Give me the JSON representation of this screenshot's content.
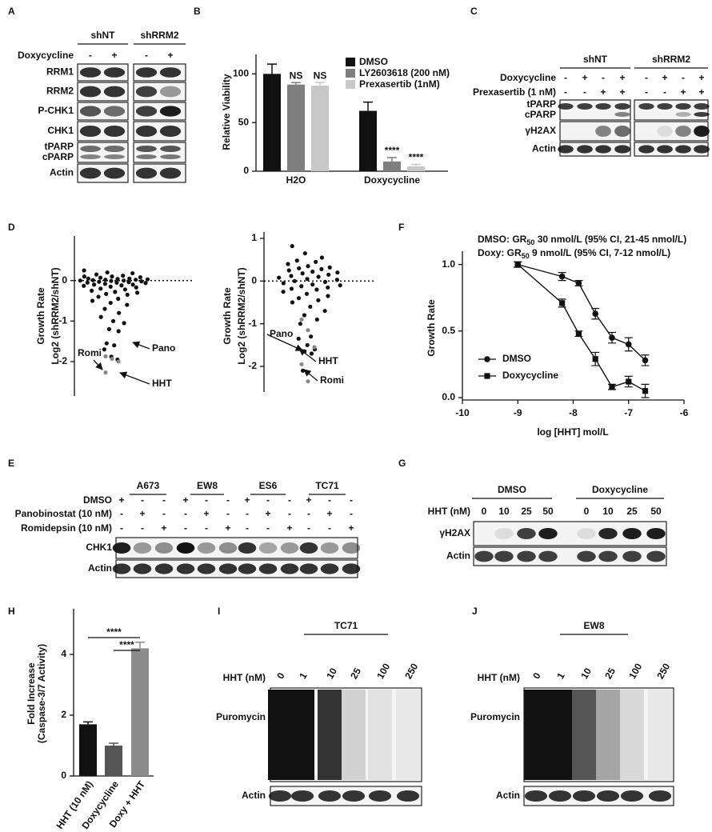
{
  "A": {
    "label": "A",
    "groups": [
      "shNT",
      "shRRM2"
    ],
    "treatments": [
      {
        "name": "Doxycycline",
        "lanes": [
          "-",
          "+",
          "-",
          "+"
        ]
      }
    ],
    "rows": [
      [
        "RRM1"
      ],
      [
        "RRM2"
      ],
      [
        "P-CHK1"
      ],
      [
        "CHK1"
      ],
      [
        "tPARP",
        "cPARP"
      ],
      [
        "Actin"
      ]
    ]
  },
  "B": {
    "label": "B",
    "chart_data": {
      "type": "bar",
      "y_label": "Relative Viability",
      "categories": [
        "H2O",
        "Doxycycline"
      ],
      "series": [
        {
          "name": "DMSO",
          "color": "#111111",
          "values": [
            100,
            62
          ],
          "errors": [
            10,
            9
          ]
        },
        {
          "name": "LY2603618 (200 nM)",
          "color": "#7f7f7f",
          "values": [
            89,
            10
          ],
          "errors": [
            2,
            4
          ],
          "significance": [
            "NS",
            "****"
          ]
        },
        {
          "name": "Prexasertib (1nM)",
          "color": "#c8c8c8",
          "values": [
            88,
            5
          ],
          "errors": [
            3,
            2
          ],
          "significance": [
            "NS",
            "****"
          ]
        }
      ],
      "ylim": [
        0,
        120
      ],
      "yticks": [
        0,
        50,
        100
      ]
    }
  },
  "C": {
    "label": "C",
    "groups": [
      "shNT",
      "shRRM2"
    ],
    "treatments": [
      {
        "name": "Doxycycline",
        "lanes": [
          "-",
          "+",
          "-",
          "+",
          "-",
          "+",
          "-",
          "+"
        ]
      },
      {
        "name": "Prexasertib (1 nM)",
        "lanes": [
          "-",
          "-",
          "+",
          "+",
          "-",
          "-",
          "+",
          "+"
        ]
      }
    ],
    "rows": [
      [
        "tPARP",
        "cPARP"
      ],
      [
        "γH2AX"
      ],
      [
        "Actin"
      ]
    ]
  },
  "D": {
    "label": "D",
    "chart_data": [
      {
        "type": "scatter",
        "y_label": [
          "Growth Rate",
          "Log2 (shRRM2/shNT)"
        ],
        "ylim": [
          -2.85,
          1.1
        ],
        "yticks": [
          0,
          -1,
          -2
        ],
        "points": [
          0.25,
          0.2,
          0.18,
          0.15,
          0.12,
          0.1,
          0.1,
          0.08,
          0.07,
          0.05,
          0.05,
          0.04,
          0.03,
          0.02,
          0.02,
          0.01,
          0,
          0,
          -0.01,
          -0.02,
          -0.03,
          -0.04,
          -0.05,
          -0.05,
          -0.06,
          -0.08,
          -0.1,
          -0.1,
          -0.12,
          -0.13,
          -0.15,
          -0.17,
          -0.2,
          -0.22,
          -0.25,
          -0.28,
          -0.3,
          -0.33,
          -0.35,
          -0.4,
          -0.45,
          -0.5,
          -0.55,
          -0.6,
          -0.7,
          -0.8,
          -0.9,
          -1.0,
          -1.05,
          -1.2,
          -1.25,
          -1.55,
          -1.6,
          -1.7,
          -1.88,
          -1.95
        ],
        "gray_points": [
          -1.87,
          -1.93,
          -2.0,
          -2.27
        ],
        "annotations": [
          "Pano",
          "Romi",
          "HHT"
        ]
      },
      {
        "type": "scatter",
        "y_label": [
          "Growth Rate",
          "Log2 (shRRM2/shNT)"
        ],
        "ylim": [
          -2.6,
          1.15
        ],
        "yticks": [
          1,
          0,
          -1,
          -2
        ],
        "points": [
          0.82,
          0.65,
          0.55,
          0.48,
          0.45,
          0.4,
          0.35,
          0.32,
          0.3,
          0.28,
          0.25,
          0.22,
          0.2,
          0.18,
          0.15,
          0.12,
          0.1,
          0.08,
          0.05,
          0.03,
          0,
          -0.02,
          -0.05,
          -0.08,
          -0.1,
          -0.12,
          -0.15,
          -0.18,
          -0.2,
          -0.25,
          -0.3,
          -0.35,
          -0.4,
          -0.45,
          -0.5,
          -0.6,
          -0.7,
          -0.8,
          -0.9,
          -1.0,
          -1.3,
          -1.35,
          -1.5,
          -1.6,
          -1.65,
          -1.7,
          -2.1
        ],
        "gray_points": [
          -0.9,
          -1.15,
          -1.55,
          -1.95,
          -2.35
        ],
        "annotations": [
          "Pano",
          "HHT",
          "Romi"
        ]
      }
    ]
  },
  "E": {
    "label": "E",
    "groups": [
      "A673",
      "EW8",
      "ES6",
      "TC71"
    ],
    "treatments": [
      {
        "name": "DMSO",
        "lanes": [
          "+",
          "-",
          "-",
          "+",
          "-",
          "-",
          "+",
          "-",
          "-",
          "+",
          "-",
          "-"
        ]
      },
      {
        "name": "Panobinostat (10 nM)",
        "lanes": [
          "-",
          "+",
          "-",
          "-",
          "+",
          "-",
          "-",
          "+",
          "-",
          "-",
          "+",
          "-"
        ]
      },
      {
        "name": "Romidepsin (10 nM)",
        "lanes": [
          "-",
          "-",
          "+",
          "-",
          "-",
          "+",
          "-",
          "-",
          "+",
          "-",
          "-",
          "+"
        ]
      }
    ],
    "rows": [
      [
        "CHK1"
      ],
      [
        "Actin"
      ]
    ]
  },
  "F": {
    "label": "F",
    "chart_data": {
      "type": "line",
      "annotations": [
        {
          "prefix": "DMSO: GR",
          "sub": "50",
          "rest": " 30 nmol/L (95% CI, 21-45 nmol/L)"
        },
        {
          "prefix": "Doxy: GR",
          "sub": "50",
          "rest": " 9 nmol/L (95% CI, 7-12 nmol/L)"
        }
      ],
      "x_label": "log [HHT] mol/L",
      "y_label": "Growth Rate",
      "x": [
        -9,
        -8.2,
        -7.9,
        -7.6,
        -7.3,
        -7,
        -6.7
      ],
      "series": [
        {
          "name": "DMSO",
          "color": "#111111",
          "marker": "circle",
          "values": [
            1.0,
            0.91,
            0.86,
            0.63,
            0.45,
            0.4,
            0.28
          ],
          "errors": [
            0.02,
            0.03,
            0.02,
            0.04,
            0.04,
            0.05,
            0.04
          ]
        },
        {
          "name": "Doxycycline",
          "color": "#111111",
          "marker": "square",
          "values": [
            1.0,
            0.71,
            0.48,
            0.29,
            0.08,
            0.12,
            0.05
          ],
          "errors": [
            0.02,
            0.03,
            0.02,
            0.05,
            0.02,
            0.04,
            0.05
          ]
        }
      ],
      "xlim": [
        -10,
        -6
      ],
      "xticks": [
        -10,
        -9,
        -8,
        -7,
        -6
      ],
      "ylim": [
        0,
        1.1
      ],
      "yticks": [
        {
          "value": 0,
          "label": "0.0"
        },
        {
          "value": 0.5,
          "label": "0.5"
        },
        {
          "value": 1,
          "label": "1.0"
        }
      ]
    }
  },
  "G": {
    "label": "G",
    "groups": [
      "DMSO",
      "Doxycycline"
    ],
    "treatments": [
      {
        "name": "HHT (nM)",
        "lanes": [
          "0",
          "10",
          "25",
          "50",
          "0",
          "10",
          "25",
          "50"
        ]
      }
    ],
    "rows": [
      [
        "γH2AX"
      ],
      [
        "Actin"
      ]
    ]
  },
  "H": {
    "label": "H",
    "chart_data": {
      "type": "bar",
      "y_label": [
        "Fold Increase",
        "(Caspase-3/7 Activity)"
      ],
      "categories": [
        "HHT (10 nM)",
        "Doxycycline",
        "Doxy + HHT"
      ],
      "values": [
        1.7,
        1.0,
        4.2
      ],
      "errors": [
        0.08,
        0.08,
        0.2
      ],
      "colors": [
        "#111111",
        "#555555",
        "#8c8c8c"
      ],
      "significance": [
        "****",
        "****"
      ],
      "ylim": [
        0,
        5.5
      ],
      "yticks": [
        0,
        2,
        4
      ]
    }
  },
  "I": {
    "label": "I",
    "groups": [
      "TC71"
    ],
    "treatments": [
      {
        "name": "HHT (nM)",
        "lanes": [
          "0",
          "1",
          "10",
          "25",
          "100",
          "250"
        ]
      }
    ],
    "rows": [
      [
        "Puromycin"
      ],
      [
        "Actin"
      ]
    ]
  },
  "J": {
    "label": "J",
    "groups": [
      "EW8"
    ],
    "treatments": [
      {
        "name": "HHT (nM)",
        "lanes": [
          "0",
          "1",
          "10",
          "25",
          "100",
          "250"
        ]
      }
    ],
    "rows": [
      [
        "Puromycin"
      ],
      [
        "Actin"
      ]
    ]
  }
}
